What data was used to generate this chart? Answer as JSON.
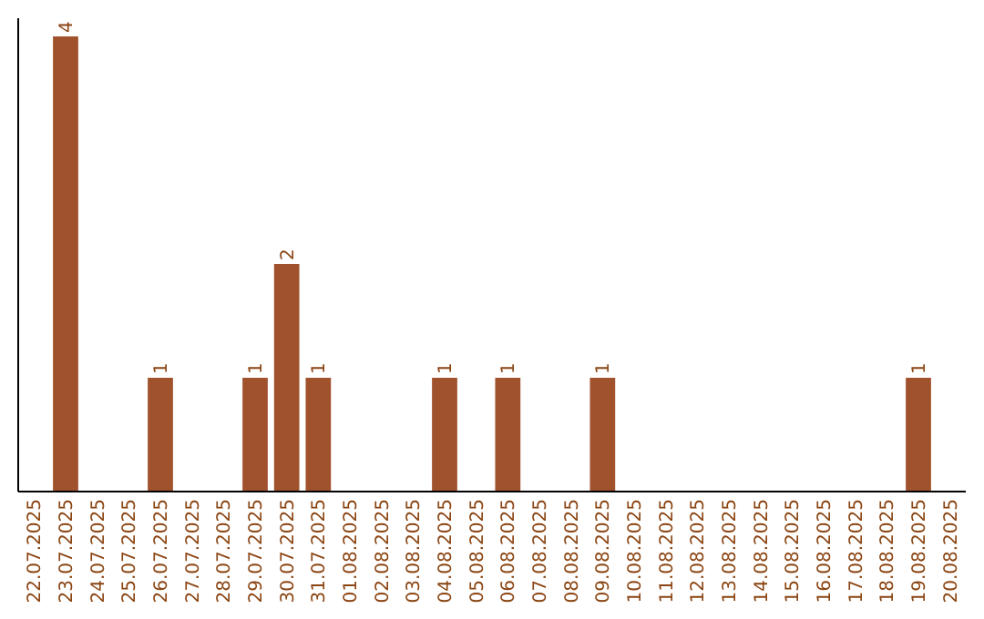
{
  "chart_data": {
    "type": "bar",
    "categories": [
      "22.07.2025",
      "23.07.2025",
      "24.07.2025",
      "25.07.2025",
      "26.07.2025",
      "27.07.2025",
      "28.07.2025",
      "29.07.2025",
      "30.07.2025",
      "31.07.2025",
      "01.08.2025",
      "02.08.2025",
      "03.08.2025",
      "04.08.2025",
      "05.08.2025",
      "06.08.2025",
      "07.08.2025",
      "08.08.2025",
      "09.08.2025",
      "10.08.2025",
      "11.08.2025",
      "12.08.2025",
      "13.08.2025",
      "14.08.2025",
      "15.08.2025",
      "16.08.2025",
      "17.08.2025",
      "18.08.2025",
      "19.08.2025",
      "20.08.2025"
    ],
    "values": [
      0,
      4,
      0,
      0,
      1,
      0,
      0,
      1,
      2,
      1,
      0,
      0,
      0,
      1,
      0,
      1,
      0,
      0,
      1,
      0,
      0,
      0,
      0,
      0,
      0,
      0,
      0,
      0,
      1,
      0
    ],
    "value_labels": [
      null,
      "4",
      null,
      null,
      "1",
      null,
      null,
      "1",
      "2",
      "1",
      null,
      null,
      null,
      "1",
      null,
      "1",
      null,
      null,
      "1",
      null,
      null,
      null,
      null,
      null,
      null,
      null,
      null,
      null,
      "1",
      null
    ],
    "color": "#a0522d",
    "ylim": [
      0,
      4
    ],
    "tick_labels": "x"
  }
}
